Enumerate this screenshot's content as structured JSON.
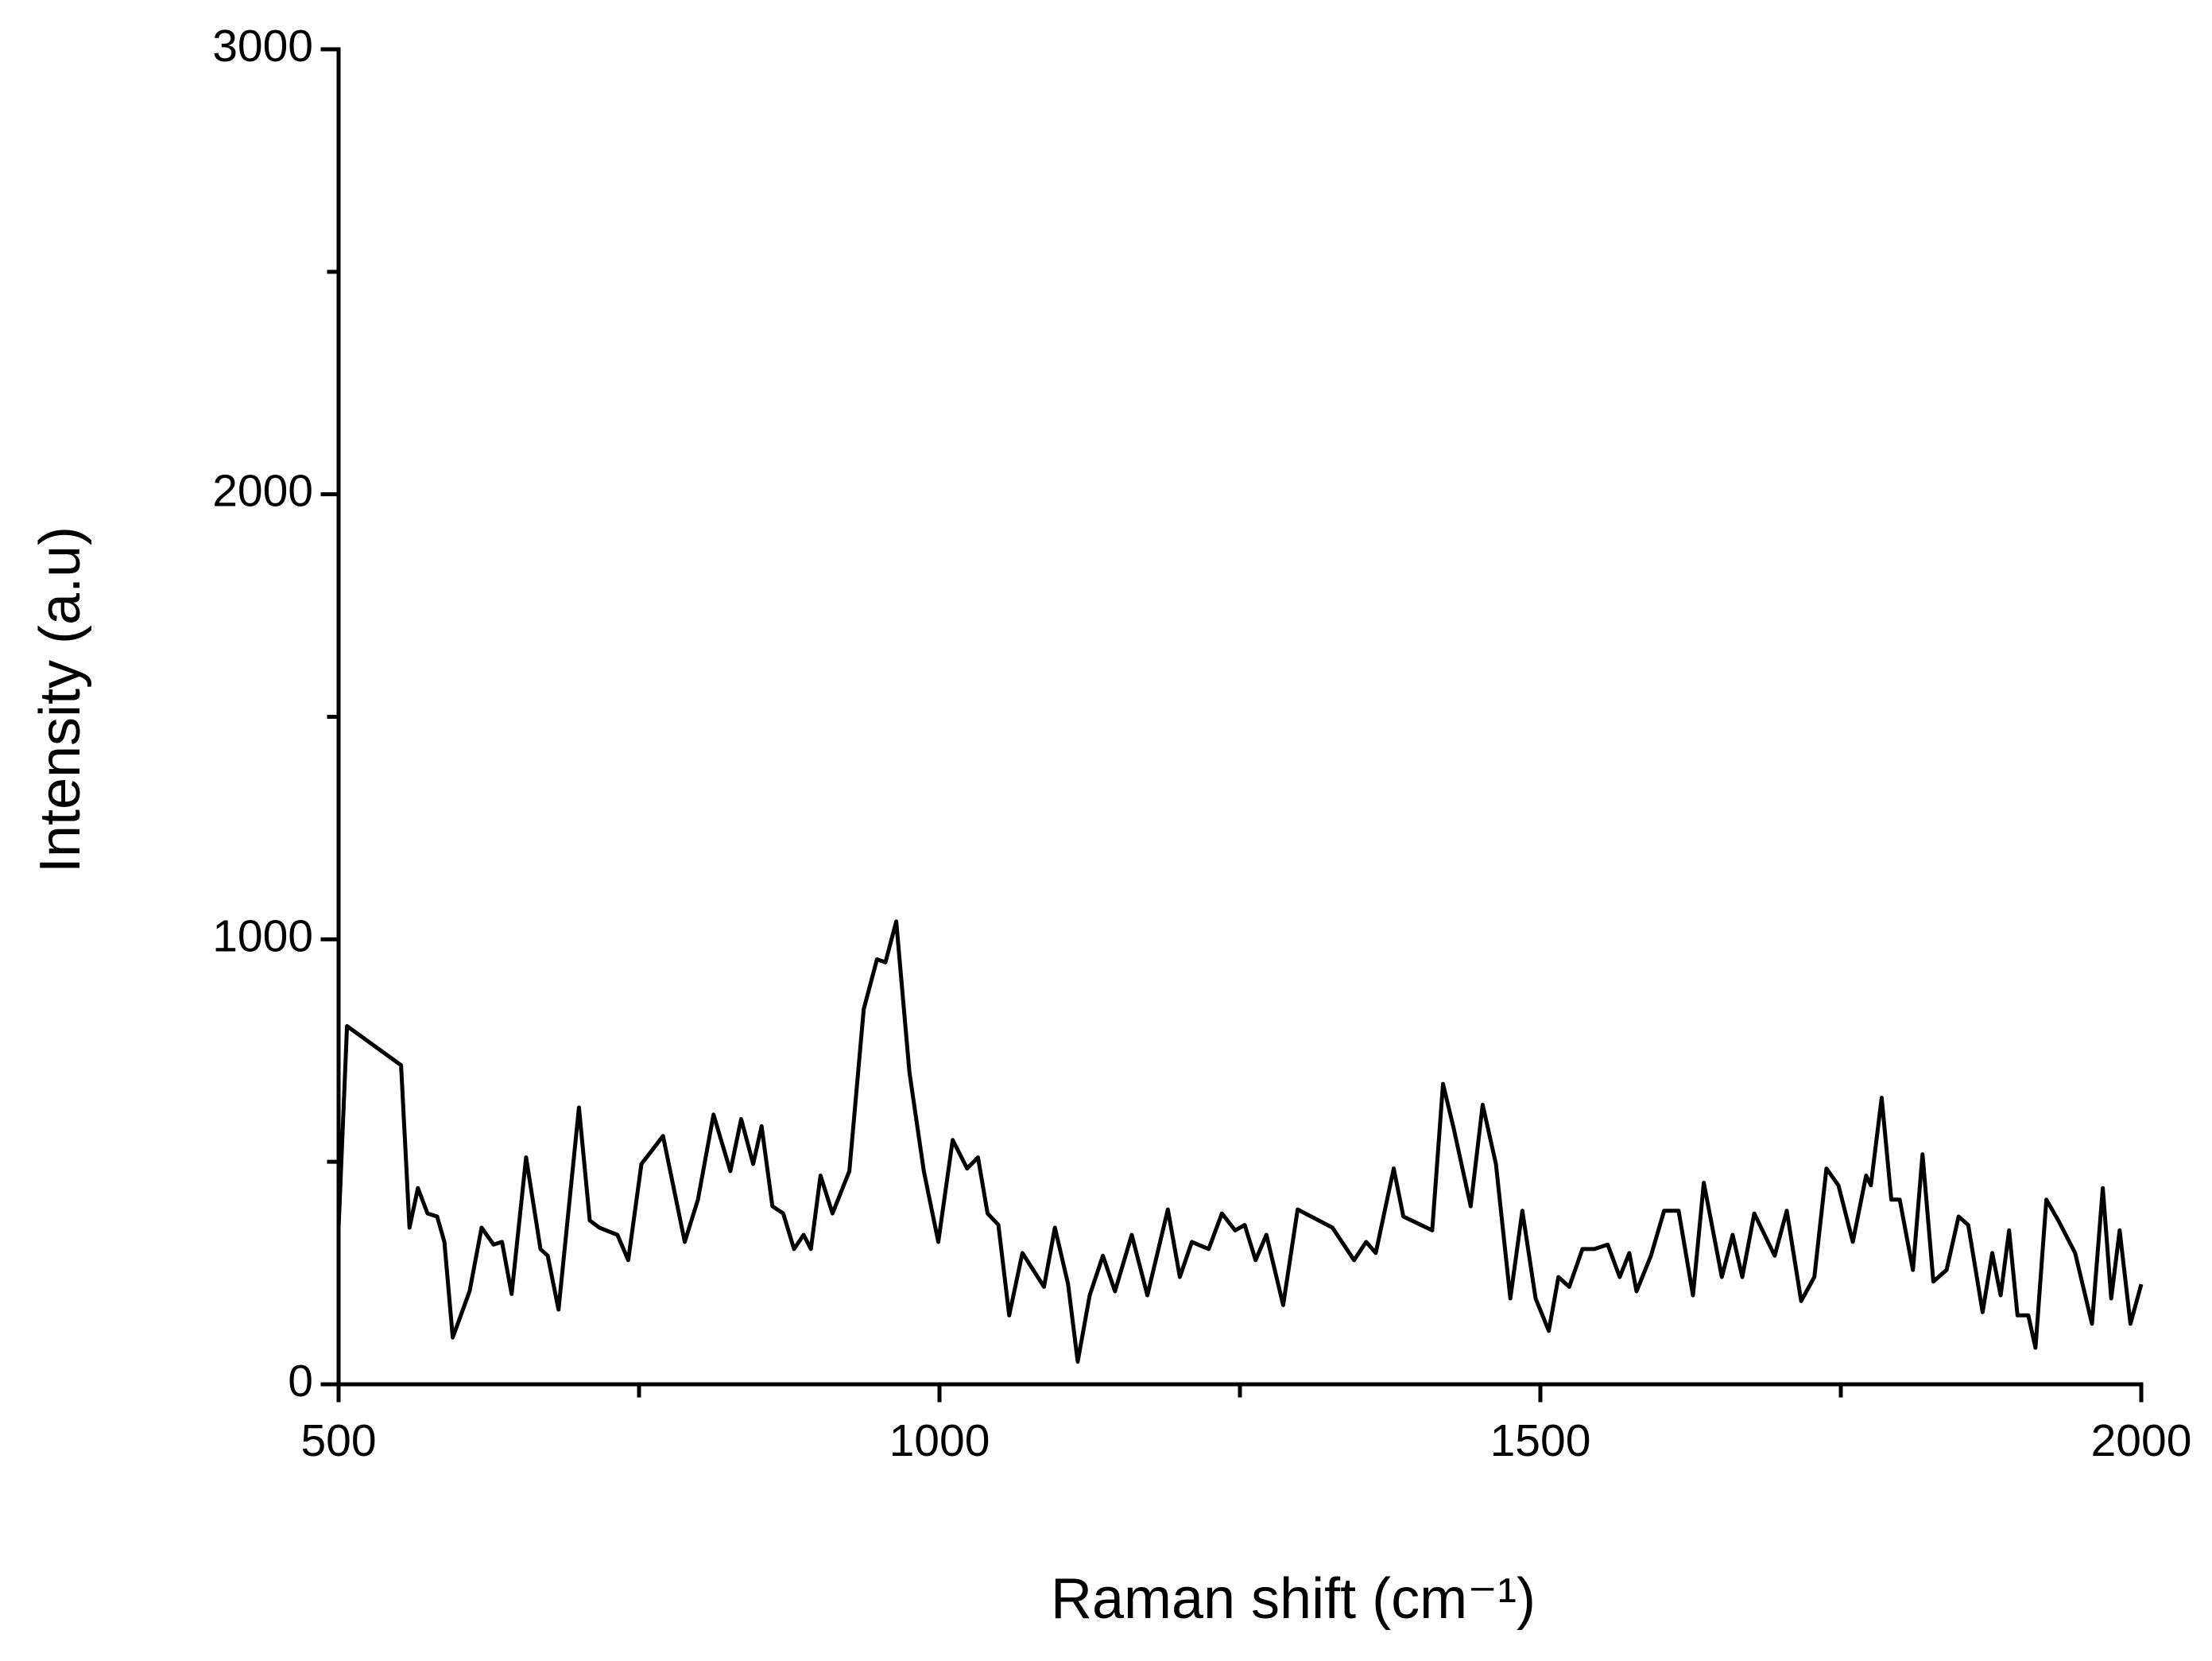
{
  "chart_data": {
    "type": "line",
    "xlabel": "Raman shift (cm⁻¹)",
    "ylabel": "Intensity (a.u)",
    "xlim": [
      500,
      2000
    ],
    "ylim": [
      0,
      3000
    ],
    "xticks": [
      500,
      1000,
      1500,
      2000
    ],
    "yticks": [
      0,
      1000,
      2000,
      3000
    ],
    "xminorticks": [
      750,
      1250,
      1750
    ],
    "yminorticks": [
      500,
      1500,
      2500
    ],
    "color": "#000000",
    "x": [
      500,
      507,
      552,
      559,
      566,
      574,
      582,
      588,
      595,
      609,
      619,
      629,
      636,
      644,
      656,
      668,
      674,
      683,
      700,
      709,
      717,
      732,
      741,
      752,
      770,
      788,
      799,
      812,
      826,
      835,
      845,
      852,
      861,
      870,
      879,
      887,
      893,
      901,
      911,
      925,
      937,
      948,
      955,
      964,
      975,
      987,
      999,
      1011,
      1023,
      1032,
      1040,
      1049,
      1058,
      1069,
      1087,
      1096,
      1107,
      1115,
      1125,
      1136,
      1146,
      1160,
      1173,
      1190,
      1200,
      1210,
      1224,
      1235,
      1246,
      1254,
      1263,
      1272,
      1286,
      1298,
      1327,
      1345,
      1355,
      1363,
      1378,
      1386,
      1410,
      1419,
      1428,
      1442,
      1452,
      1463,
      1475,
      1485,
      1496,
      1507,
      1515,
      1524,
      1535,
      1545,
      1556,
      1566,
      1574,
      1580,
      1592,
      1603,
      1615,
      1627,
      1636,
      1651,
      1660,
      1668,
      1678,
      1695,
      1705,
      1717,
      1728,
      1738,
      1748,
      1760,
      1771,
      1775,
      1784,
      1792,
      1799,
      1810,
      1818,
      1827,
      1838,
      1848,
      1856,
      1868,
      1876,
      1883,
      1890,
      1897,
      1906,
      1912,
      1921,
      1931,
      1945,
      1959,
      1968,
      1975,
      1982,
      1991,
      2000
    ],
    "values": [
      352,
      805,
      717,
      352,
      441,
      384,
      377,
      320,
      105,
      209,
      352,
      314,
      320,
      203,
      510,
      304,
      289,
      168,
      622,
      368,
      352,
      336,
      279,
      495,
      558,
      320,
      415,
      606,
      479,
      596,
      495,
      580,
      400,
      384,
      304,
      336,
      304,
      469,
      384,
      479,
      843,
      955,
      948,
      1040,
      701,
      479,
      320,
      549,
      485,
      510,
      384,
      358,
      155,
      295,
      219,
      352,
      225,
      51,
      200,
      289,
      209,
      336,
      200,
      393,
      241,
      320,
      304,
      384,
      346,
      358,
      279,
      336,
      178,
      393,
      352,
      279,
      320,
      295,
      485,
      377,
      346,
      675,
      574,
      400,
      628,
      495,
      193,
      390,
      193,
      120,
      241,
      219,
      304,
      304,
      314,
      241,
      295,
      209,
      289,
      390,
      390,
      200,
      453,
      241,
      336,
      241,
      384,
      289,
      390,
      187,
      241,
      485,
      447,
      320,
      469,
      447,
      644,
      415,
      415,
      257,
      517,
      231,
      257,
      377,
      358,
      162,
      295,
      200,
      346,
      155,
      155,
      82,
      415,
      368,
      295,
      136,
      441,
      193,
      346,
      136,
      225
    ]
  }
}
